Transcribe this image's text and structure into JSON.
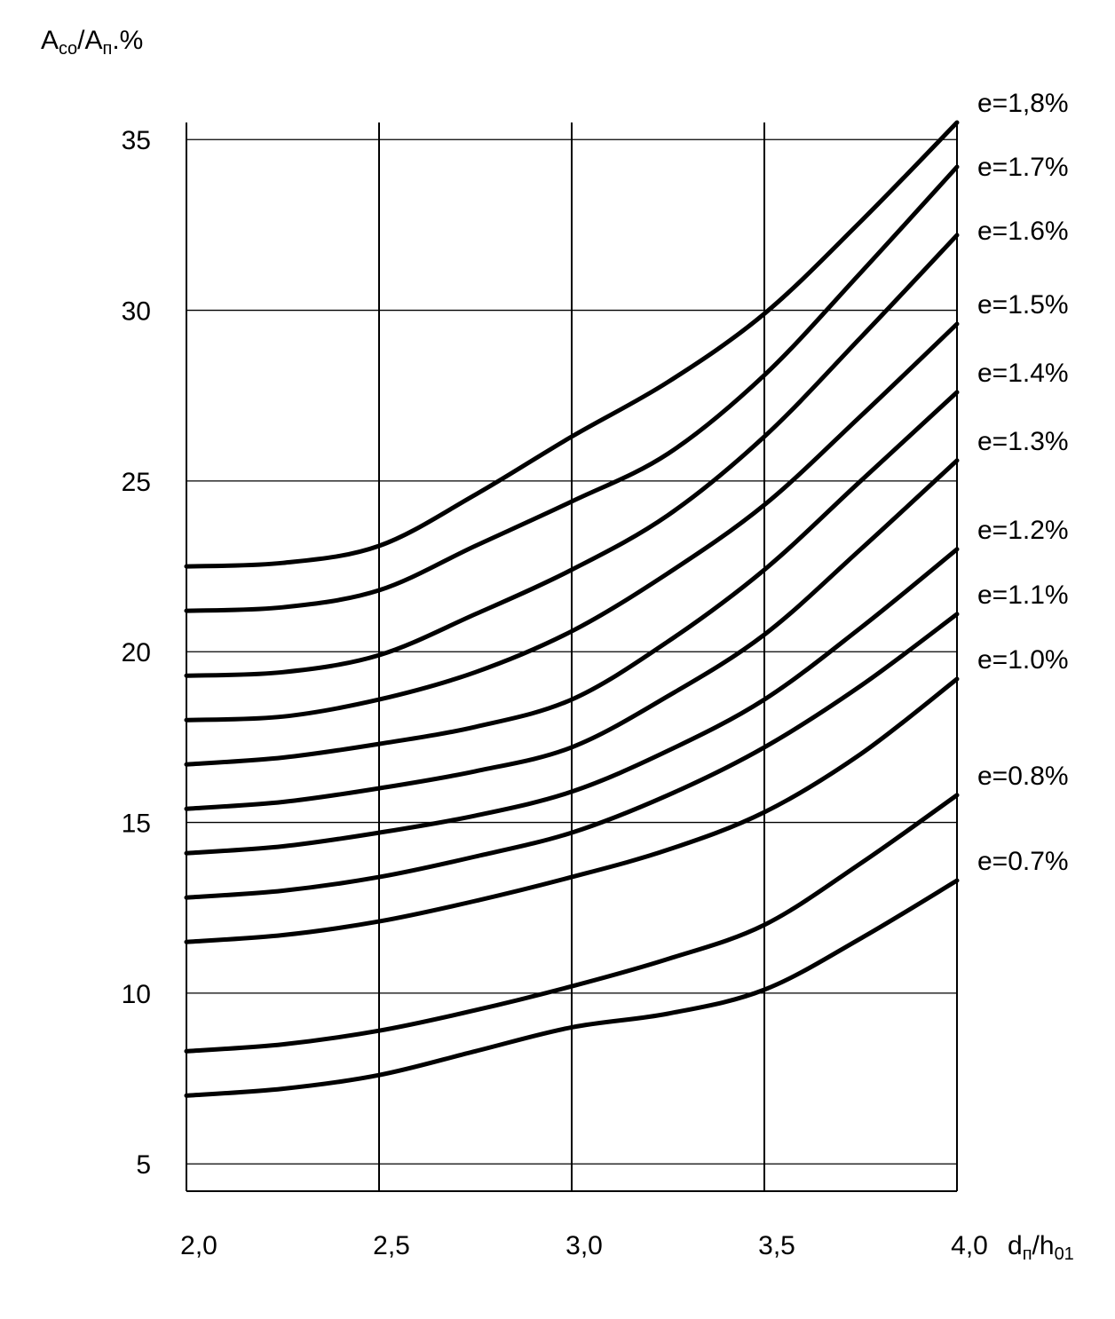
{
  "chart_data": {
    "type": "line",
    "title": "",
    "ylabel": {
      "parts": [
        {
          "text": "A",
          "sub": false
        },
        {
          "text": "co",
          "sub": true
        },
        {
          "text": "/A",
          "sub": false
        },
        {
          "text": "п",
          "sub": true
        },
        {
          "text": ".%",
          "sub": false
        }
      ]
    },
    "xlabel": {
      "parts": [
        {
          "text": "d",
          "sub": false
        },
        {
          "text": "п",
          "sub": true
        },
        {
          "text": "/h",
          "sub": false
        },
        {
          "text": "01",
          "sub": true
        }
      ]
    },
    "xlim": [
      2.0,
      4.0
    ],
    "ylim": [
      4.2,
      35.5
    ],
    "x_ticks": [
      {
        "value": 2.0,
        "label": "2,0"
      },
      {
        "value": 2.5,
        "label": "2,5"
      },
      {
        "value": 3.0,
        "label": "3,0"
      },
      {
        "value": 3.5,
        "label": "3,5"
      },
      {
        "value": 4.0,
        "label": "4,0"
      }
    ],
    "y_ticks": [
      {
        "value": 5,
        "label": "5"
      },
      {
        "value": 10,
        "label": "10"
      },
      {
        "value": 15,
        "label": "15"
      },
      {
        "value": 20,
        "label": "20"
      },
      {
        "value": 25,
        "label": "25"
      },
      {
        "value": 30,
        "label": "30"
      },
      {
        "value": 35,
        "label": "35"
      }
    ],
    "grid": true,
    "legend": "right",
    "line_color": "#000000",
    "x": [
      2.0,
      2.25,
      2.5,
      2.75,
      3.0,
      3.25,
      3.5,
      3.75,
      4.0
    ],
    "series": [
      {
        "name": "e=1,8%",
        "values": [
          22.5,
          22.6,
          23.1,
          24.6,
          26.3,
          27.9,
          29.9,
          32.6,
          35.5
        ]
      },
      {
        "name": "e=1.7%",
        "values": [
          21.2,
          21.3,
          21.8,
          23.1,
          24.4,
          25.8,
          28.1,
          31.1,
          34.2
        ]
      },
      {
        "name": "e=1.6%",
        "values": [
          19.3,
          19.4,
          19.9,
          21.1,
          22.4,
          24.0,
          26.3,
          29.2,
          32.2
        ]
      },
      {
        "name": "e=1.5%",
        "values": [
          18.0,
          18.1,
          18.6,
          19.4,
          20.6,
          22.3,
          24.3,
          26.9,
          29.6
        ]
      },
      {
        "name": "e=1.4%",
        "values": [
          16.7,
          16.9,
          17.3,
          17.8,
          18.6,
          20.3,
          22.4,
          25.0,
          27.6
        ]
      },
      {
        "name": "e=1.3%",
        "values": [
          15.4,
          15.6,
          16.0,
          16.5,
          17.2,
          18.7,
          20.5,
          23.0,
          25.6
        ]
      },
      {
        "name": "e=1.2%",
        "values": [
          14.1,
          14.3,
          14.7,
          15.2,
          15.9,
          17.1,
          18.6,
          20.7,
          23.0
        ]
      },
      {
        "name": "e=1.1%",
        "values": [
          12.8,
          13.0,
          13.4,
          14.0,
          14.7,
          15.8,
          17.2,
          19.0,
          21.1
        ]
      },
      {
        "name": "e=1.0%",
        "values": [
          11.5,
          11.7,
          12.1,
          12.7,
          13.4,
          14.2,
          15.3,
          17.0,
          19.2
        ]
      },
      {
        "name": "e=0.8%",
        "values": [
          8.3,
          8.5,
          8.9,
          9.5,
          10.2,
          11.0,
          12.0,
          13.8,
          15.8
        ]
      },
      {
        "name": "e=0.7%",
        "values": [
          7.0,
          7.2,
          7.6,
          8.3,
          9.0,
          9.4,
          10.1,
          11.6,
          13.3
        ]
      }
    ]
  }
}
